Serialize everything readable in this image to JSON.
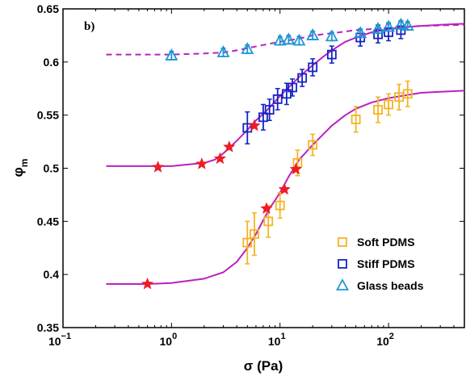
{
  "chart_data": {
    "type": "scatter",
    "panel_label": "b)",
    "xlabel": "σ (Pa)",
    "ylabel": "φ",
    "ylabel_sub": "m",
    "xscale": "log",
    "xlim": [
      0.1,
      500
    ],
    "ylim": [
      0.35,
      0.65
    ],
    "xticks": [
      {
        "value": 0.1,
        "base": "10",
        "exp": "−1"
      },
      {
        "value": 1,
        "base": "10",
        "exp": "0"
      },
      {
        "value": 10,
        "base": "10",
        "exp": "1"
      },
      {
        "value": 100,
        "base": "10",
        "exp": "2"
      }
    ],
    "yticks": [
      "0.35",
      "0.4",
      "0.45",
      "0.5",
      "0.55",
      "0.6",
      "0.65"
    ],
    "legend_position": "lower-right",
    "series": [
      {
        "name": "Soft PDMS",
        "marker": "square",
        "color": "#F5B323",
        "points": [
          {
            "x": 5.0,
            "y": 0.43,
            "err": 0.02
          },
          {
            "x": 5.8,
            "y": 0.438,
            "err": 0.02
          },
          {
            "x": 7.8,
            "y": 0.45,
            "err": 0.015
          },
          {
            "x": 10.0,
            "y": 0.465,
            "err": 0.012
          },
          {
            "x": 14.5,
            "y": 0.505,
            "err": 0.012
          },
          {
            "x": 20.0,
            "y": 0.522,
            "err": 0.01
          },
          {
            "x": 50.0,
            "y": 0.546,
            "err": 0.012
          },
          {
            "x": 80.0,
            "y": 0.555,
            "err": 0.012
          },
          {
            "x": 100.0,
            "y": 0.56,
            "err": 0.01
          },
          {
            "x": 125.0,
            "y": 0.567,
            "err": 0.012
          },
          {
            "x": 150.0,
            "y": 0.57,
            "err": 0.012
          }
        ]
      },
      {
        "name": "Stiff PDMS",
        "marker": "square",
        "color": "#1523C2",
        "points": [
          {
            "x": 5.0,
            "y": 0.538,
            "err": 0.015
          },
          {
            "x": 7.0,
            "y": 0.548,
            "err": 0.012
          },
          {
            "x": 8.0,
            "y": 0.555,
            "err": 0.01
          },
          {
            "x": 9.5,
            "y": 0.565,
            "err": 0.01
          },
          {
            "x": 11.5,
            "y": 0.57,
            "err": 0.01
          },
          {
            "x": 13.0,
            "y": 0.576,
            "err": 0.008
          },
          {
            "x": 16.0,
            "y": 0.585,
            "err": 0.008
          },
          {
            "x": 20.0,
            "y": 0.595,
            "err": 0.008
          },
          {
            "x": 30.0,
            "y": 0.607,
            "err": 0.008
          },
          {
            "x": 55.0,
            "y": 0.623,
            "err": 0.008
          },
          {
            "x": 80.0,
            "y": 0.626,
            "err": 0.008
          },
          {
            "x": 100.0,
            "y": 0.628,
            "err": 0.008
          },
          {
            "x": 130.0,
            "y": 0.63,
            "err": 0.008
          }
        ]
      },
      {
        "name": "Glass beads",
        "marker": "triangle",
        "color": "#1F97D2",
        "points": [
          {
            "x": 1.0,
            "y": 0.606,
            "err": 0.004
          },
          {
            "x": 3.0,
            "y": 0.609,
            "err": 0.004
          },
          {
            "x": 5.0,
            "y": 0.612,
            "err": 0.004
          },
          {
            "x": 10.0,
            "y": 0.62,
            "err": 0.004
          },
          {
            "x": 12.0,
            "y": 0.621,
            "err": 0.004
          },
          {
            "x": 15.0,
            "y": 0.62,
            "err": 0.004
          },
          {
            "x": 20.0,
            "y": 0.625,
            "err": 0.004
          },
          {
            "x": 30.0,
            "y": 0.624,
            "err": 0.004
          },
          {
            "x": 55.0,
            "y": 0.627,
            "err": 0.004
          },
          {
            "x": 80.0,
            "y": 0.631,
            "err": 0.004
          },
          {
            "x": 100.0,
            "y": 0.633,
            "err": 0.004
          },
          {
            "x": 130.0,
            "y": 0.635,
            "err": 0.004
          },
          {
            "x": 150.0,
            "y": 0.634,
            "err": 0.004
          }
        ]
      },
      {
        "marker": "star",
        "color": "#EE1C25",
        "points": [
          {
            "x": 0.6,
            "y": 0.391
          },
          {
            "x": 7.5,
            "y": 0.462
          },
          {
            "x": 11.0,
            "y": 0.48
          },
          {
            "x": 14.0,
            "y": 0.499
          },
          {
            "x": 0.75,
            "y": 0.501
          },
          {
            "x": 1.9,
            "y": 0.504
          },
          {
            "x": 2.8,
            "y": 0.509
          },
          {
            "x": 3.4,
            "y": 0.52
          },
          {
            "x": 5.8,
            "y": 0.54
          }
        ]
      }
    ],
    "curves": [
      {
        "style": "solid",
        "color": "#BA21C0",
        "x": [
          0.25,
          0.6,
          1,
          2,
          3,
          4,
          5,
          6,
          7,
          8,
          10,
          12,
          15,
          20,
          25,
          30,
          40,
          50,
          70,
          100,
          150,
          200,
          300,
          500
        ],
        "y": [
          0.391,
          0.391,
          0.392,
          0.396,
          0.402,
          0.412,
          0.425,
          0.438,
          0.451,
          0.462,
          0.477,
          0.492,
          0.508,
          0.522,
          0.532,
          0.54,
          0.55,
          0.556,
          0.562,
          0.566,
          0.569,
          0.571,
          0.572,
          0.573
        ]
      },
      {
        "style": "solid",
        "color": "#BA21C0",
        "x": [
          0.25,
          0.6,
          1,
          2,
          2.5,
          3,
          4,
          5,
          6,
          7,
          8,
          10,
          12,
          15,
          20,
          25,
          30,
          40,
          50,
          70,
          100,
          150,
          200,
          300,
          500
        ],
        "y": [
          0.502,
          0.502,
          0.502,
          0.505,
          0.508,
          0.514,
          0.526,
          0.536,
          0.545,
          0.551,
          0.557,
          0.568,
          0.576,
          0.586,
          0.597,
          0.605,
          0.611,
          0.619,
          0.623,
          0.628,
          0.631,
          0.633,
          0.634,
          0.635,
          0.636
        ]
      },
      {
        "style": "dashed",
        "color": "#BA21C0",
        "x": [
          0.25,
          1,
          2,
          3,
          4,
          5,
          7,
          10,
          15,
          20,
          30,
          50,
          100,
          200,
          500
        ],
        "y": [
          0.607,
          0.607,
          0.608,
          0.609,
          0.611,
          0.613,
          0.616,
          0.619,
          0.622,
          0.625,
          0.627,
          0.63,
          0.632,
          0.634,
          0.635
        ]
      }
    ]
  }
}
